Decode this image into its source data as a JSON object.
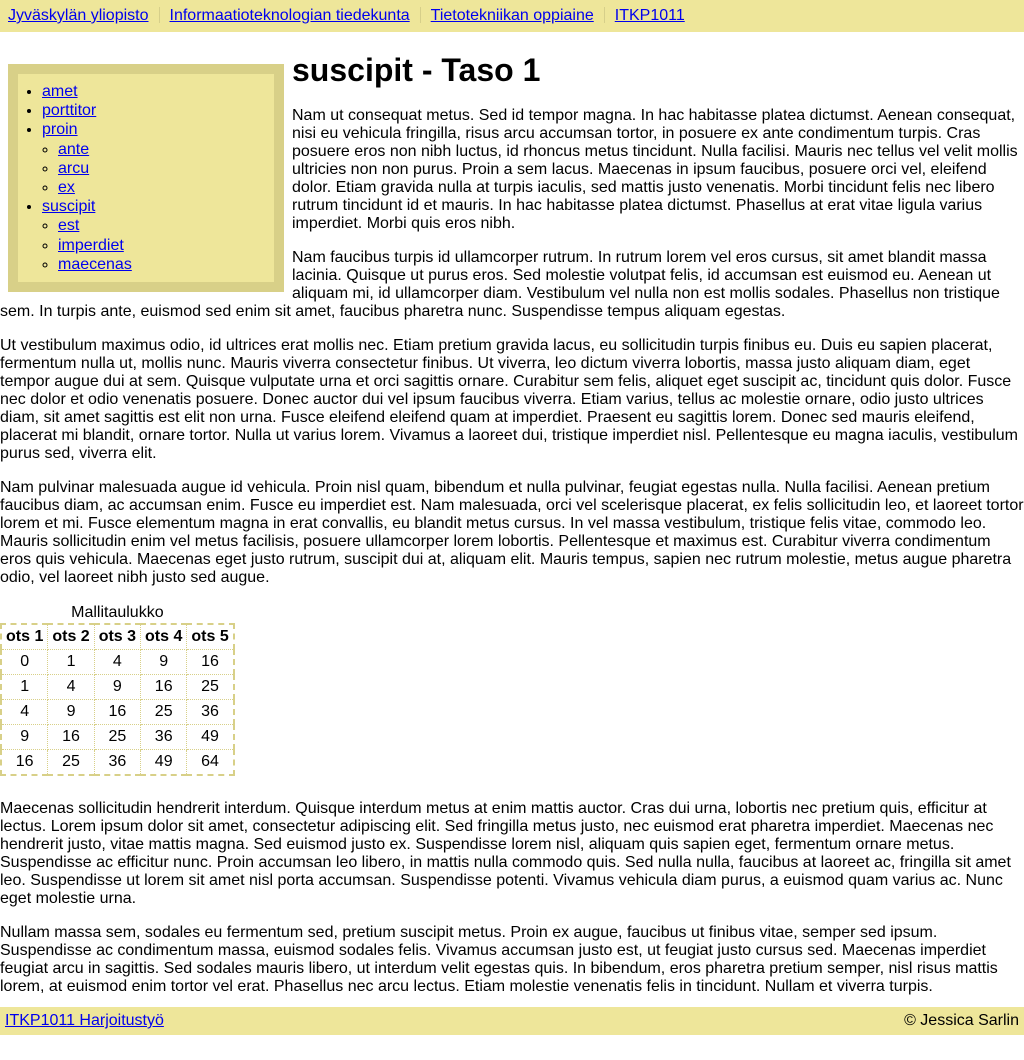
{
  "breadcrumb": [
    "Jyväskylän yliopisto",
    "Informaatioteknologian tiedekunta",
    "Tietotekniikan oppiaine",
    "ITKP1011"
  ],
  "nav": {
    "items": [
      {
        "label": "amet"
      },
      {
        "label": "porttitor"
      },
      {
        "label": "proin",
        "children": [
          "ante",
          "arcu",
          "ex"
        ]
      },
      {
        "label": "suscipit",
        "children": [
          "est",
          "imperdiet",
          "maecenas"
        ]
      }
    ]
  },
  "page": {
    "title": "suscipit - Taso 1",
    "paragraphs_before": [
      "Nam ut consequat metus. Sed id tempor magna. In hac habitasse platea dictumst. Aenean consequat, nisi eu vehicula fringilla, risus arcu accumsan tortor, in posuere ex ante condimentum turpis. Cras posuere eros non nibh luctus, id rhoncus metus tincidunt. Nulla facilisi. Mauris nec tellus vel velit mollis ultricies non non purus. Proin a sem lacus. Maecenas in ipsum faucibus, posuere orci vel, eleifend dolor. Etiam gravida nulla at turpis iaculis, sed mattis justo venenatis. Morbi tincidunt felis nec libero rutrum tincidunt id et mauris. In hac habitasse platea dictumst. Phasellus at erat vitae ligula varius imperdiet. Morbi quis eros nibh.",
      "Nam faucibus turpis id ullamcorper rutrum. In rutrum lorem vel eros cursus, sit amet blandit massa lacinia. Quisque ut purus eros. Sed molestie volutpat felis, id accumsan est euismod eu. Aenean ut aliquam mi, id ullamcorper diam. Vestibulum vel nulla non est mollis sodales. Phasellus non tristique sem. In turpis ante, euismod sed enim sit amet, faucibus pharetra nunc. Suspendisse tempus aliquam egestas.",
      "Ut vestibulum maximus odio, id ultrices erat mollis nec. Etiam pretium gravida lacus, eu sollicitudin turpis finibus eu. Duis eu sapien placerat, fermentum nulla ut, mollis nunc. Mauris viverra consectetur finibus. Ut viverra, leo dictum viverra lobortis, massa justo aliquam diam, eget tempor augue dui at sem. Quisque vulputate urna et orci sagittis ornare. Curabitur sem felis, aliquet eget suscipit ac, tincidunt quis dolor. Fusce nec dolor et odio venenatis posuere. Donec auctor dui vel ipsum faucibus viverra. Etiam varius, tellus ac molestie ornare, odio justo ultrices diam, sit amet sagittis est elit non urna. Fusce eleifend eleifend quam at imperdiet. Praesent eu sagittis lorem. Donec sed mauris eleifend, placerat mi blandit, ornare tortor. Nulla ut varius lorem. Vivamus a laoreet dui, tristique imperdiet nisl. Pellentesque eu magna iaculis, vestibulum purus sed, viverra elit.",
      "Nam pulvinar malesuada augue id vehicula. Proin nisl quam, bibendum et nulla pulvinar, feugiat egestas nulla. Nulla facilisi. Aenean pretium faucibus diam, ac accumsan enim. Fusce eu imperdiet est. Nam malesuada, orci vel scelerisque placerat, ex felis sollicitudin leo, et laoreet tortor lorem et mi. Fusce elementum magna in erat convallis, eu blandit metus cursus. In vel massa vestibulum, tristique felis vitae, commodo leo. Mauris sollicitudin enim vel metus facilisis, posuere ullamcorper lorem lobortis. Pellentesque et maximus est. Curabitur viverra condimentum eros quis vehicula. Maecenas eget justo rutrum, suscipit dui at, aliquam elit. Mauris tempus, sapien nec rutrum molestie, metus augue pharetra odio, vel laoreet nibh justo sed augue."
    ],
    "table": {
      "caption": "Mallitaulukko",
      "headers": [
        "ots 1",
        "ots 2",
        "ots 3",
        "ots 4",
        "ots 5"
      ],
      "rows": [
        [
          "0",
          "1",
          "4",
          "9",
          "16"
        ],
        [
          "1",
          "4",
          "9",
          "16",
          "25"
        ],
        [
          "4",
          "9",
          "16",
          "25",
          "36"
        ],
        [
          "9",
          "16",
          "25",
          "36",
          "49"
        ],
        [
          "16",
          "25",
          "36",
          "49",
          "64"
        ]
      ]
    },
    "paragraphs_after": [
      "Maecenas sollicitudin hendrerit interdum. Quisque interdum metus at enim mattis auctor. Cras dui urna, lobortis nec pretium quis, efficitur at lectus. Lorem ipsum dolor sit amet, consectetur adipiscing elit. Sed fringilla metus justo, nec euismod erat pharetra imperdiet. Maecenas nec hendrerit justo, vitae mattis magna. Sed euismod justo ex. Suspendisse lorem nisl, aliquam quis sapien eget, fermentum ornare metus. Suspendisse ac efficitur nunc. Proin accumsan leo libero, in mattis nulla commodo quis. Sed nulla nulla, faucibus at laoreet ac, fringilla sit amet leo. Suspendisse ut lorem sit amet nisl porta accumsan. Suspendisse potenti. Vivamus vehicula diam purus, a euismod quam varius ac. Nunc eget molestie urna.",
      "Nullam massa sem, sodales eu fermentum sed, pretium suscipit metus. Proin ex augue, faucibus ut finibus vitae, semper sed ipsum. Suspendisse ac condimentum massa, euismod sodales felis. Vivamus accumsan justo est, ut feugiat justo cursus sed. Maecenas imperdiet feugiat arcu in sagittis. Sed sodales mauris libero, ut interdum velit egestas quis. In bibendum, eros pharetra pretium semper, nisl risus mattis lorem, at euismod enim tortor vel erat. Phasellus nec arcu lectus. Etiam molestie venenatis felis in tincidunt. Nullam et viverra turpis."
    ]
  },
  "footer": {
    "link": "ITKP1011 Harjoitustyö",
    "copyright": "©  Jessica Sarlin"
  },
  "colors": {
    "bar_background": "#eee69a",
    "nav_border": "#d8d088",
    "link": "#0000ee"
  }
}
